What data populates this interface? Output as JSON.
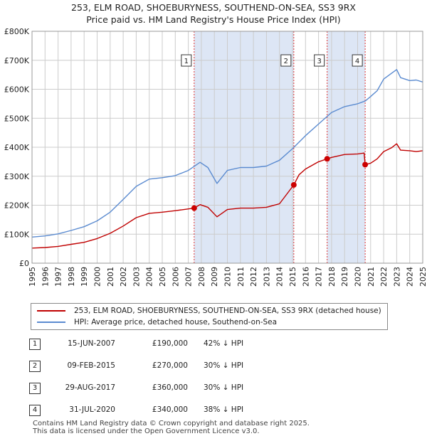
{
  "title_line1": "253, ELM ROAD, SHOEBURYNESS, SOUTHEND-ON-SEA, SS3 9RX",
  "title_line2": "Price paid vs. HM Land Registry's House Price Index (HPI)",
  "colors": {
    "property": "#c00000",
    "hpi": "#5b8bd0",
    "shade": "#dde6f5",
    "grid": "#cccccc",
    "marker": "#cc0000"
  },
  "chart_data": {
    "type": "line",
    "xlim": [
      1995,
      2025
    ],
    "ylim": [
      0,
      800000
    ],
    "yticks": [
      0,
      100000,
      200000,
      300000,
      400000,
      500000,
      600000,
      700000,
      800000
    ],
    "ytick_labels": [
      "£0",
      "£100K",
      "£200K",
      "£300K",
      "£400K",
      "£500K",
      "£600K",
      "£700K",
      "£800K"
    ],
    "xticks": [
      "1995",
      "1996",
      "1997",
      "1998",
      "1999",
      "2000",
      "2001",
      "2002",
      "2003",
      "2004",
      "2005",
      "2006",
      "2007",
      "2008",
      "2009",
      "2010",
      "2011",
      "2012",
      "2013",
      "2014",
      "2015",
      "2016",
      "2017",
      "2018",
      "2019",
      "2020",
      "2021",
      "2022",
      "2023",
      "2024",
      "2025"
    ],
    "shaded_ranges": [
      [
        2007.45,
        2015.1
      ],
      [
        2017.66,
        2020.58
      ]
    ],
    "series": [
      {
        "name": "253, ELM ROAD, SHOEBURYNESS, SOUTHEND-ON-SEA, SS3 9RX (detached house)",
        "x": [
          1995,
          1996,
          1997,
          1998,
          1999,
          2000,
          2001,
          2002,
          2003,
          2004,
          2005,
          2006,
          2007.45,
          2007.9,
          2008.5,
          2009.2,
          2010,
          2011,
          2012,
          2013,
          2014,
          2015.1,
          2015.5,
          2016,
          2017,
          2017.66,
          2018,
          2019,
          2020,
          2020.5,
          2020.58,
          2021,
          2021.5,
          2022,
          2022.6,
          2023,
          2023.3,
          2024,
          2024.5,
          2025
        ],
        "values": [
          52000,
          54000,
          58000,
          65000,
          72000,
          85000,
          103000,
          128000,
          157000,
          172000,
          176000,
          181000,
          190000,
          202000,
          193000,
          160000,
          185000,
          190000,
          190000,
          193000,
          205000,
          270000,
          305000,
          325000,
          350000,
          360000,
          365000,
          375000,
          377000,
          380000,
          340000,
          345000,
          360000,
          385000,
          398000,
          412000,
          390000,
          388000,
          385000,
          388000
        ]
      },
      {
        "name": "HPI: Average price, detached house, Southend-on-Sea",
        "x": [
          1995,
          1996,
          1997,
          1998,
          1999,
          2000,
          2001,
          2002,
          2003,
          2004,
          2005,
          2006,
          2007,
          2007.9,
          2008.5,
          2009.2,
          2010,
          2011,
          2012,
          2013,
          2014,
          2015,
          2016,
          2017,
          2018,
          2019,
          2020,
          2020.6,
          2021,
          2021.5,
          2022,
          2022.6,
          2023,
          2023.3,
          2024,
          2024.5,
          2025
        ],
        "values": [
          90000,
          94000,
          101000,
          113000,
          126000,
          146000,
          176000,
          220000,
          265000,
          290000,
          295000,
          302000,
          320000,
          348000,
          330000,
          275000,
          320000,
          330000,
          330000,
          335000,
          355000,
          395000,
          440000,
          480000,
          520000,
          540000,
          550000,
          560000,
          575000,
          595000,
          635000,
          655000,
          668000,
          640000,
          630000,
          632000,
          625000
        ]
      }
    ],
    "sales": [
      {
        "n": "1",
        "x": 2007.45,
        "price": 190000
      },
      {
        "n": "2",
        "x": 2015.1,
        "price": 270000
      },
      {
        "n": "3",
        "x": 2017.66,
        "price": 360000
      },
      {
        "n": "4",
        "x": 2020.58,
        "price": 340000
      }
    ]
  },
  "legend": {
    "property": "253, ELM ROAD, SHOEBURYNESS, SOUTHEND-ON-SEA, SS3 9RX (detached house)",
    "hpi": "HPI: Average price, detached house, Southend-on-Sea"
  },
  "transactions": [
    {
      "n": "1",
      "date": "15-JUN-2007",
      "price": "£190,000",
      "hpi": "42% ↓ HPI"
    },
    {
      "n": "2",
      "date": "09-FEB-2015",
      "price": "£270,000",
      "hpi": "30% ↓ HPI"
    },
    {
      "n": "3",
      "date": "29-AUG-2017",
      "price": "£360,000",
      "hpi": "30% ↓ HPI"
    },
    {
      "n": "4",
      "date": "31-JUL-2020",
      "price": "£340,000",
      "hpi": "38% ↓ HPI"
    }
  ],
  "footer_line1": "Contains HM Land Registry data © Crown copyright and database right 2025.",
  "footer_line2": "This data is licensed under the Open Government Licence v3.0."
}
